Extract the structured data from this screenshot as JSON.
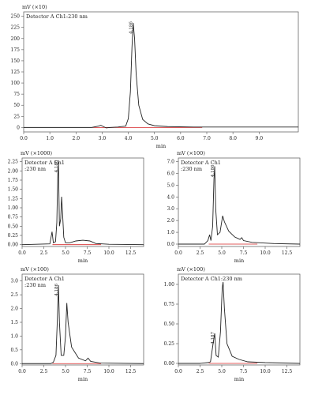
{
  "chart_data": [
    {
      "type": "line",
      "y_unit": "mV (×10)",
      "detector": "Detector A Ch1:230 nm",
      "xlabel": "min",
      "xlim": [
        0,
        10.5
      ],
      "ylim": [
        -10,
        260
      ],
      "x_ticks": [
        "0.0",
        "1.0",
        "2.0",
        "3.0",
        "4.0",
        "5.0",
        "6.0",
        "7.0",
        "8.0",
        "9.0"
      ],
      "y_ticks": [
        "0",
        "25",
        "50",
        "75",
        "100",
        "125",
        "150",
        "175",
        "200",
        "225",
        "250"
      ],
      "peak_label": "4.186",
      "baseline_color": "#d62728",
      "series": [
        {
          "points": [
            [
              0.0,
              0
            ],
            [
              2.6,
              0
            ],
            [
              2.85,
              3
            ],
            [
              2.95,
              5
            ],
            [
              3.05,
              2
            ],
            [
              3.15,
              -1
            ],
            [
              3.3,
              0
            ],
            [
              3.6,
              1
            ],
            [
              3.75,
              2
            ],
            [
              3.9,
              3
            ],
            [
              4.0,
              20
            ],
            [
              4.08,
              80
            ],
            [
              4.14,
              180
            ],
            [
              4.186,
              235
            ],
            [
              4.24,
              200
            ],
            [
              4.3,
              120
            ],
            [
              4.4,
              50
            ],
            [
              4.55,
              18
            ],
            [
              4.75,
              8
            ],
            [
              5.0,
              4
            ],
            [
              5.5,
              2
            ],
            [
              6.5,
              1
            ],
            [
              10.5,
              1
            ]
          ]
        }
      ]
    },
    {
      "type": "line",
      "y_unit": "mV (×1000)",
      "detector": "Detector A Ch1\n:230 nm",
      "xlabel": "min",
      "xlim": [
        0,
        14
      ],
      "ylim": [
        -0.05,
        2.35
      ],
      "x_ticks": [
        "0.0",
        "2.5",
        "5.0",
        "7.5",
        "10.0",
        "12.5"
      ],
      "y_ticks": [
        "0.00",
        "0.25",
        "0.50",
        "0.75",
        "1.00",
        "1.25",
        "1.50",
        "1.75",
        "2.00",
        "2.25"
      ],
      "peak_label": "4.186",
      "baseline_color": "#d62728",
      "series": [
        {
          "points": [
            [
              0.0,
              0.0
            ],
            [
              3.2,
              0.02
            ],
            [
              3.45,
              0.35
            ],
            [
              3.6,
              0.05
            ],
            [
              3.85,
              0.08
            ],
            [
              4.0,
              0.6
            ],
            [
              4.1,
              1.8
            ],
            [
              4.186,
              2.25
            ],
            [
              4.3,
              0.5
            ],
            [
              4.45,
              0.7
            ],
            [
              4.55,
              1.3
            ],
            [
              4.65,
              0.9
            ],
            [
              4.8,
              0.2
            ],
            [
              5.0,
              0.05
            ],
            [
              5.5,
              0.05
            ],
            [
              6.2,
              0.1
            ],
            [
              7.0,
              0.12
            ],
            [
              7.8,
              0.1
            ],
            [
              8.5,
              0.03
            ],
            [
              10.0,
              0.01
            ],
            [
              14.0,
              0.0
            ]
          ]
        }
      ]
    },
    {
      "type": "line",
      "y_unit": "mV (×100)",
      "detector": "Detector A Ch1\n:230 nm",
      "xlabel": "min",
      "xlim": [
        0,
        14
      ],
      "ylim": [
        -0.2,
        7.3
      ],
      "x_ticks": [
        "0.0",
        "2.5",
        "5.0",
        "7.5",
        "10.0",
        "12.5"
      ],
      "y_ticks": [
        "0.0",
        "1.0",
        "2.0",
        "3.0",
        "4.0",
        "5.0",
        "6.0",
        "7.0"
      ],
      "peak_label": "4.186",
      "baseline_color": "#d62728",
      "series": [
        {
          "points": [
            [
              0.0,
              0.0
            ],
            [
              3.0,
              0.0
            ],
            [
              3.4,
              0.3
            ],
            [
              3.6,
              0.8
            ],
            [
              3.75,
              0.3
            ],
            [
              3.95,
              1.5
            ],
            [
              4.1,
              5.5
            ],
            [
              4.186,
              6.6
            ],
            [
              4.3,
              3.0
            ],
            [
              4.5,
              0.8
            ],
            [
              4.8,
              1.0
            ],
            [
              5.1,
              2.4
            ],
            [
              5.3,
              1.9
            ],
            [
              5.8,
              1.1
            ],
            [
              6.5,
              0.6
            ],
            [
              7.1,
              0.4
            ],
            [
              7.3,
              0.55
            ],
            [
              7.5,
              0.3
            ],
            [
              8.5,
              0.15
            ],
            [
              11.0,
              0.05
            ],
            [
              14.0,
              0.0
            ]
          ]
        }
      ]
    },
    {
      "type": "line",
      "y_unit": "mV (×100)",
      "detector": "Detector A Ch1\n:230 nm",
      "xlabel": "min",
      "xlim": [
        0,
        14
      ],
      "ylim": [
        -0.05,
        3.25
      ],
      "x_ticks": [
        "0.0",
        "2.5",
        "5.0",
        "7.5",
        "10.0",
        "12.5"
      ],
      "y_ticks": [
        "0.0",
        "0.5",
        "1.0",
        "1.5",
        "2.0",
        "2.5",
        "3.0"
      ],
      "peak_label": "4.186",
      "baseline_color": "#d62728",
      "series": [
        {
          "points": [
            [
              0.0,
              0.0
            ],
            [
              3.3,
              0.0
            ],
            [
              3.6,
              0.05
            ],
            [
              3.9,
              0.3
            ],
            [
              4.05,
              1.5
            ],
            [
              4.186,
              2.85
            ],
            [
              4.3,
              1.5
            ],
            [
              4.5,
              0.3
            ],
            [
              4.8,
              0.3
            ],
            [
              5.0,
              1.0
            ],
            [
              5.15,
              2.2
            ],
            [
              5.3,
              1.5
            ],
            [
              5.7,
              0.6
            ],
            [
              6.5,
              0.2
            ],
            [
              7.3,
              0.1
            ],
            [
              7.6,
              0.2
            ],
            [
              7.9,
              0.08
            ],
            [
              9.0,
              0.02
            ],
            [
              14.0,
              0.0
            ]
          ]
        }
      ]
    },
    {
      "type": "line",
      "y_unit": "mV (×100)",
      "detector": "Detector A Ch1:230 nm",
      "xlabel": "min",
      "xlim": [
        0,
        14
      ],
      "ylim": [
        -0.02,
        1.13
      ],
      "x_ticks": [
        "0.0",
        "2.5",
        "5.0",
        "7.5",
        "10.0",
        "12.5"
      ],
      "y_ticks": [
        "0.00",
        "0.25",
        "0.50",
        "0.75",
        "1.00"
      ],
      "peak_label": "4.187",
      "baseline_color": "#d62728",
      "series": [
        {
          "points": [
            [
              0.0,
              0.0
            ],
            [
              2.5,
              0.0
            ],
            [
              3.4,
              0.01
            ],
            [
              3.7,
              0.02
            ],
            [
              4.0,
              0.25
            ],
            [
              4.187,
              0.38
            ],
            [
              4.35,
              0.1
            ],
            [
              4.6,
              0.08
            ],
            [
              4.85,
              0.4
            ],
            [
              5.05,
              0.95
            ],
            [
              5.15,
              1.03
            ],
            [
              5.3,
              0.7
            ],
            [
              5.6,
              0.25
            ],
            [
              6.2,
              0.09
            ],
            [
              7.0,
              0.05
            ],
            [
              8.0,
              0.02
            ],
            [
              10.0,
              0.01
            ],
            [
              14.0,
              0.0
            ]
          ]
        }
      ]
    }
  ]
}
